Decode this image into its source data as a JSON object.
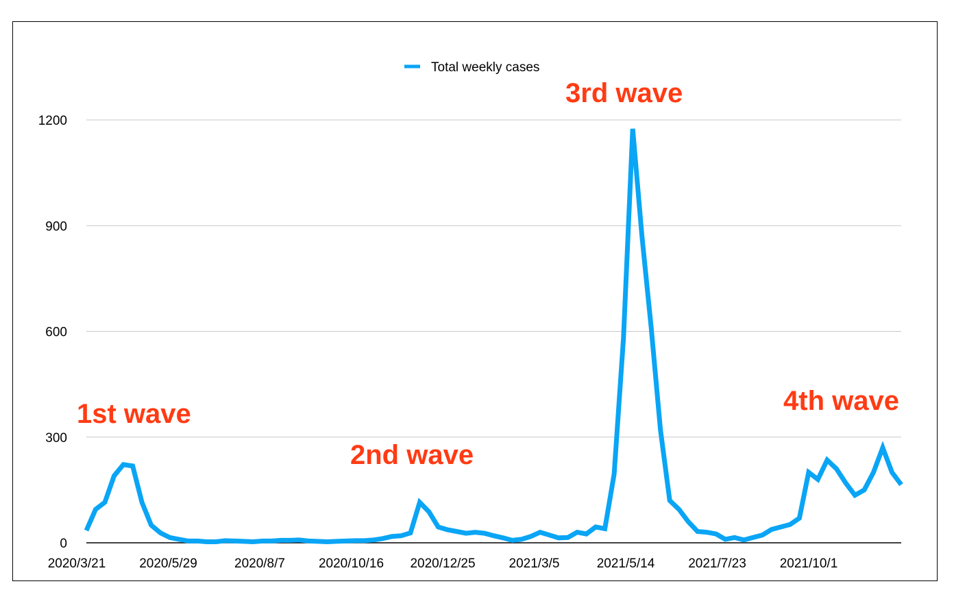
{
  "chart_data": {
    "type": "line",
    "title": "",
    "xlabel": "",
    "ylabel": "",
    "ylim": [
      0,
      1200
    ],
    "yticks": [
      0,
      300,
      600,
      900,
      1200
    ],
    "grid": true,
    "legend_position": "top-center",
    "x_tick_labels": [
      "2020/3/21",
      "2020/5/29",
      "2020/8/7",
      "2020/10/16",
      "2020/12/25",
      "2021/3/5",
      "2021/5/14",
      "2021/7/23",
      "2021/10/1"
    ],
    "series": [
      {
        "name": "Total weekly cases",
        "color": "#0aa5f5",
        "values": [
          35,
          95,
          115,
          190,
          222,
          218,
          115,
          50,
          28,
          15,
          10,
          5,
          5,
          3,
          3,
          6,
          5,
          4,
          3,
          5,
          5,
          7,
          7,
          8,
          5,
          4,
          3,
          4,
          5,
          6,
          6,
          8,
          12,
          18,
          20,
          28,
          115,
          88,
          45,
          37,
          32,
          27,
          30,
          27,
          20,
          14,
          7,
          10,
          18,
          30,
          22,
          14,
          15,
          30,
          25,
          45,
          40,
          195,
          580,
          1175,
          870,
          610,
          320,
          120,
          95,
          60,
          32,
          30,
          25,
          10,
          15,
          8,
          15,
          22,
          38,
          45,
          52,
          70,
          200,
          180,
          235,
          210,
          170,
          135,
          150,
          200,
          270,
          200,
          165
        ]
      }
    ],
    "annotations": [
      {
        "text": "1st wave",
        "color": "#ff3b14"
      },
      {
        "text": "2nd wave",
        "color": "#ff3b14"
      },
      {
        "text": "3rd wave",
        "color": "#ff3b14"
      },
      {
        "text": "4th wave",
        "color": "#ff3b14"
      }
    ]
  }
}
